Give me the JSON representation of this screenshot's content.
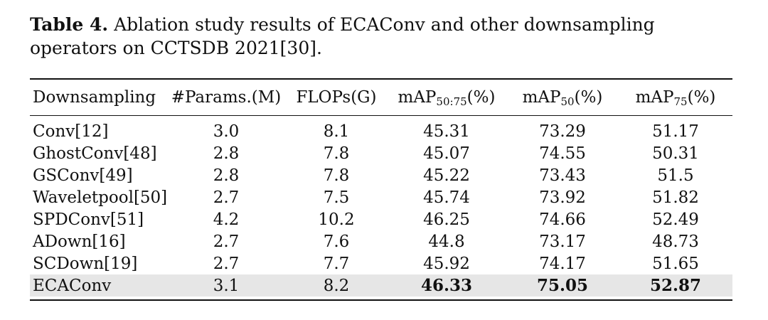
{
  "caption": {
    "label": "Table 4.",
    "text": "Ablation study results of ECAConv and other downsampling operators on CCTSDB 2021[30]."
  },
  "table": {
    "headers": {
      "downsampling": "Downsampling",
      "params": "#Params.(M)",
      "flops": "FLOPs(G)",
      "map5075": {
        "base": "mAP",
        "sub": "50:75",
        "unit": "(%)"
      },
      "map50": {
        "base": "mAP",
        "sub": "50",
        "unit": "(%)"
      },
      "map75": {
        "base": "mAP",
        "sub": "75",
        "unit": "(%)"
      }
    },
    "rows": [
      {
        "name": "Conv[12]",
        "params": "3.0",
        "flops": "8.1",
        "map5075": "45.31",
        "map50": "73.29",
        "map75": "51.17"
      },
      {
        "name": "GhostConv[48]",
        "params": "2.8",
        "flops": "7.8",
        "map5075": "45.07",
        "map50": "74.55",
        "map75": "50.31"
      },
      {
        "name": "GSConv[49]",
        "params": "2.8",
        "flops": "7.8",
        "map5075": "45.22",
        "map50": "73.43",
        "map75": "51.5"
      },
      {
        "name": "Waveletpool[50]",
        "params": "2.7",
        "flops": "7.5",
        "map5075": "45.74",
        "map50": "73.92",
        "map75": "51.82"
      },
      {
        "name": "SPDConv[51]",
        "params": "4.2",
        "flops": "10.2",
        "map5075": "46.25",
        "map50": "74.66",
        "map75": "52.49"
      },
      {
        "name": "ADown[16]",
        "params": "2.7",
        "flops": "7.6",
        "map5075": "44.8",
        "map50": "73.17",
        "map75": "48.73"
      },
      {
        "name": "SCDown[19]",
        "params": "2.7",
        "flops": "7.7",
        "map5075": "45.92",
        "map50": "74.17",
        "map75": "51.65"
      },
      {
        "name": "ECAConv",
        "params": "3.1",
        "flops": "8.2",
        "map5075": "46.33",
        "map50": "75.05",
        "map75": "52.87"
      }
    ]
  }
}
